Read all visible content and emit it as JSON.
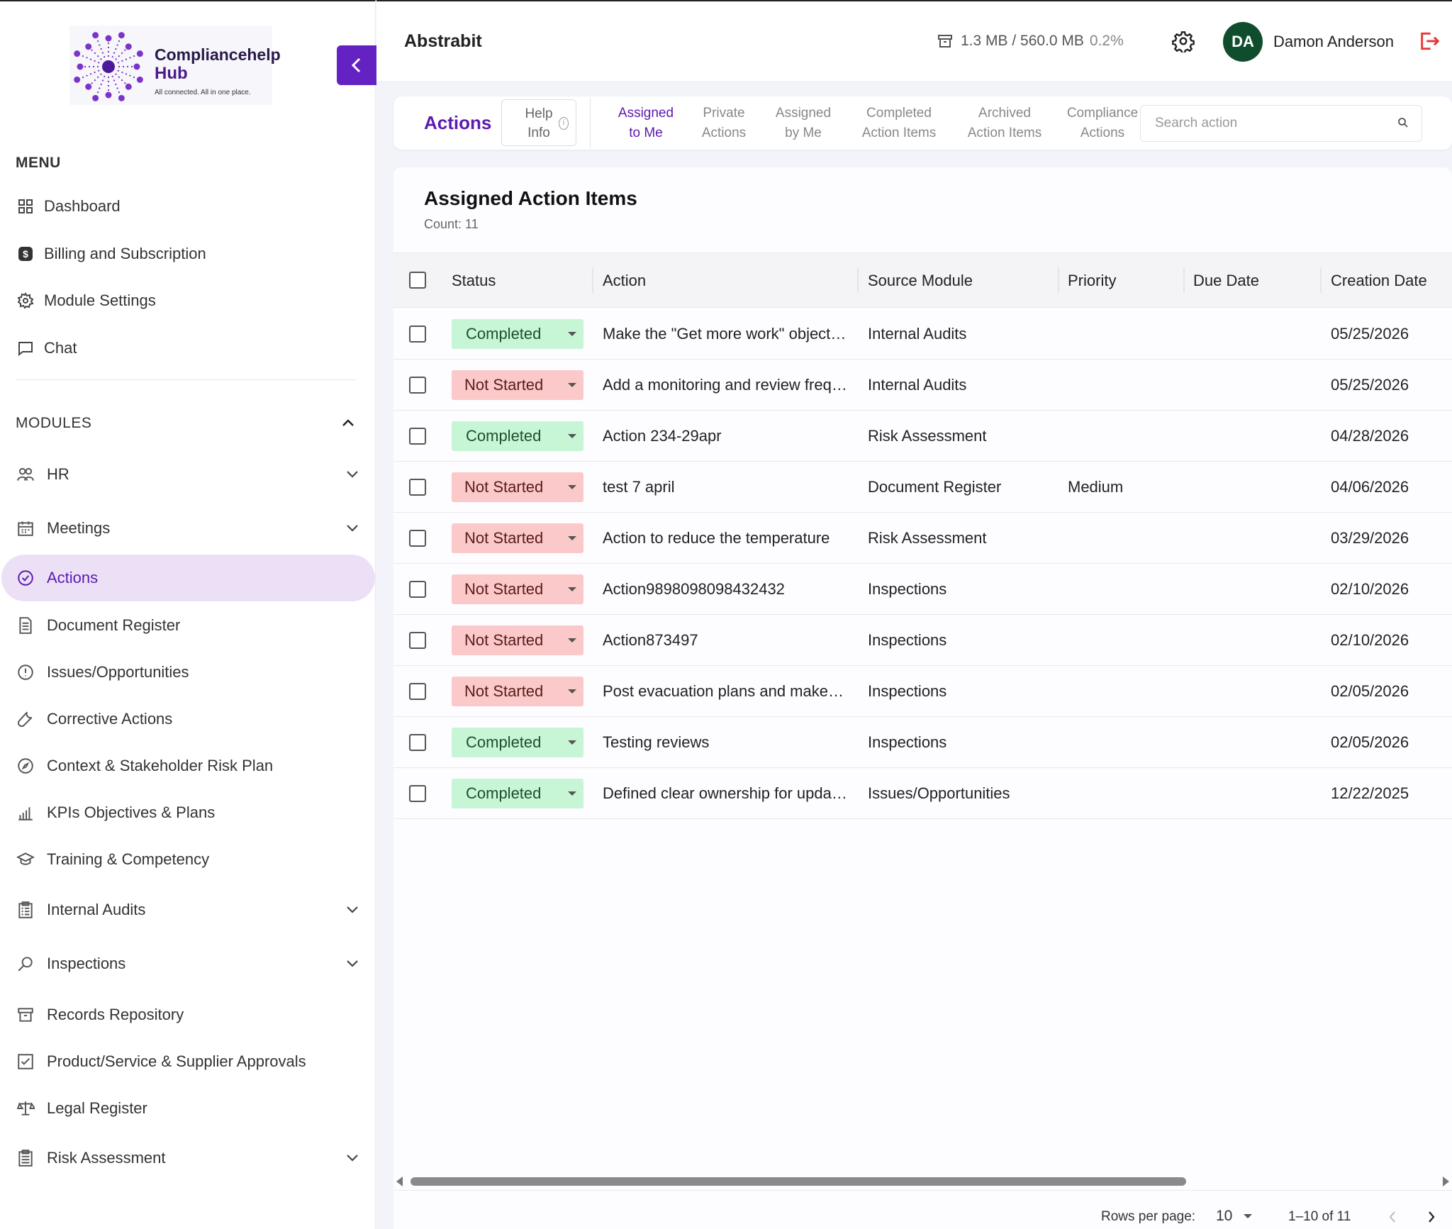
{
  "brand": {
    "name_line1": "Compliancehelp",
    "name_line2": "Hub",
    "tagline": "All connected. All in one place.",
    "accent": "#6422c2"
  },
  "sidebar": {
    "menu_label": "MENU",
    "menu": [
      {
        "label": "Dashboard",
        "icon": "grid-icon"
      },
      {
        "label": "Billing and Subscription",
        "icon": "dollar-icon"
      },
      {
        "label": "Module Settings",
        "icon": "gear-icon"
      },
      {
        "label": "Chat",
        "icon": "chat-icon"
      }
    ],
    "modules_label": "MODULES",
    "modules": [
      {
        "label": "HR",
        "icon": "people-icon",
        "expandable": true
      },
      {
        "label": "Meetings",
        "icon": "calendar-icon",
        "expandable": true
      },
      {
        "label": "Actions",
        "icon": "check-circle-icon",
        "active": true
      },
      {
        "label": "Document Register",
        "icon": "document-icon"
      },
      {
        "label": "Issues/Opportunities",
        "icon": "alert-circle-icon"
      },
      {
        "label": "Corrective Actions",
        "icon": "wrench-icon"
      },
      {
        "label": "Context & Stakeholder Risk Plan",
        "icon": "compass-icon"
      },
      {
        "label": "KPIs Objectives & Plans",
        "icon": "bar-chart-icon"
      },
      {
        "label": "Training & Competency",
        "icon": "graduation-cap-icon"
      },
      {
        "label": "Internal Audits",
        "icon": "clipboard-icon",
        "expandable": true
      },
      {
        "label": "Inspections",
        "icon": "magnifier-icon",
        "expandable": true
      },
      {
        "label": "Records Repository",
        "icon": "archive-icon"
      },
      {
        "label": "Product/Service & Supplier Approvals",
        "icon": "checkbox-icon"
      },
      {
        "label": "Legal Register",
        "icon": "scales-icon"
      },
      {
        "label": "Risk Assessment",
        "icon": "clipboard-list-icon",
        "expandable": true
      }
    ]
  },
  "header": {
    "org_name": "Abstrabit",
    "storage": "1.3 MB / 560.0 MB",
    "storage_pct": "0.2%",
    "user_initials": "DA",
    "user_name": "Damon Anderson"
  },
  "tabs_bar": {
    "title": "Actions",
    "help_line1": "Help",
    "help_line2": "Info",
    "tabs": [
      {
        "line1": "Assigned",
        "line2": "to Me",
        "active": true
      },
      {
        "line1": "Private",
        "line2": "Actions"
      },
      {
        "line1": "Assigned",
        "line2": "by Me"
      },
      {
        "line1": "Completed",
        "line2": "Action Items"
      },
      {
        "line1": "Archived",
        "line2": "Action Items"
      },
      {
        "line1": "Compliance",
        "line2": "Actions"
      }
    ],
    "search_placeholder": "Search action"
  },
  "table": {
    "title": "Assigned Action Items",
    "count": "Count: 11",
    "columns": [
      "Status",
      "Action",
      "Source Module",
      "Priority",
      "Due Date",
      "Creation Date"
    ],
    "status_colors": {
      "Completed": "#c6f6d5",
      "Not Started": "#fbc9c9"
    },
    "rows": [
      {
        "status": "Completed",
        "action": "Make the \"Get more work\" objective",
        "source": "Internal Audits",
        "priority": "",
        "due": "",
        "created": "05/25/2026"
      },
      {
        "status": "Not Started",
        "action": "Add a monitoring and review frequency",
        "source": "Internal Audits",
        "priority": "",
        "due": "",
        "created": "05/25/2026"
      },
      {
        "status": "Completed",
        "action": "Action 234-29apr",
        "source": "Risk Assessment",
        "priority": "",
        "due": "",
        "created": "04/28/2026"
      },
      {
        "status": "Not Started",
        "action": "test 7 april",
        "source": "Document Register",
        "priority": "Medium",
        "due": "",
        "created": "04/06/2026"
      },
      {
        "status": "Not Started",
        "action": "Action to reduce the temperature",
        "source": "Risk Assessment",
        "priority": "",
        "due": "",
        "created": "03/29/2026"
      },
      {
        "status": "Not Started",
        "action": "Action9898098098432432",
        "source": "Inspections",
        "priority": "",
        "due": "",
        "created": "02/10/2026"
      },
      {
        "status": "Not Started",
        "action": "Action873497",
        "source": "Inspections",
        "priority": "",
        "due": "",
        "created": "02/10/2026"
      },
      {
        "status": "Not Started",
        "action": "Post evacuation plans and make them",
        "source": "Inspections",
        "priority": "",
        "due": "",
        "created": "02/05/2026"
      },
      {
        "status": "Completed",
        "action": "Testing reviews",
        "source": "Inspections",
        "priority": "",
        "due": "",
        "created": "02/05/2026"
      },
      {
        "status": "Completed",
        "action": "Defined clear ownership for updates",
        "source": "Issues/Opportunities",
        "priority": "",
        "due": "",
        "created": "12/22/2025"
      }
    ]
  },
  "pagination": {
    "rows_label": "Rows per page:",
    "rows_value": "10",
    "range": "1–10 of 11"
  }
}
